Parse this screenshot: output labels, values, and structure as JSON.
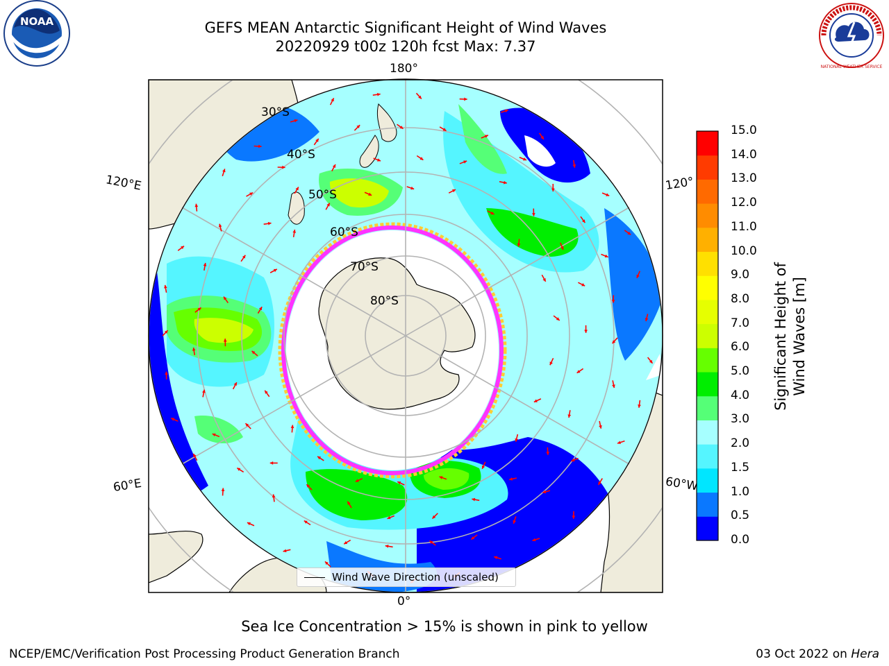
{
  "title": {
    "line1": "GEFS MEAN Antarctic Significant Height of Wind Waves",
    "line2": "20220929 t00z 120h fcst   Max: 7.37"
  },
  "map": {
    "projection": "south-polar-stereographic",
    "meridian_labels": [
      "180°",
      "120°E",
      "120°",
      "60°E",
      "60°W",
      "0°"
    ],
    "latitude_labels": [
      "30°S",
      "40°S",
      "50°S",
      "60°S",
      "70°S",
      "80°S"
    ],
    "land_color": "#efecdc",
    "ice_edge_colors": [
      "#ff33ff",
      "#ffcc33"
    ],
    "arrow_color": "#ff0000"
  },
  "legend": {
    "label": "Wind Wave Direction (unscaled)"
  },
  "colorbar": {
    "label": "Significant Height of Wind Waves [m]",
    "ticks": [
      "0.0",
      "0.5",
      "1.0",
      "1.5",
      "2.0",
      "3.0",
      "4.0",
      "5.0",
      "6.0",
      "7.0",
      "8.0",
      "9.0",
      "10.0",
      "11.0",
      "12.0",
      "13.0",
      "14.0",
      "15.0"
    ],
    "colors": [
      "#0000ff",
      "#0a78ff",
      "#00e6ff",
      "#55f5ff",
      "#a6ffff",
      "#55ff77",
      "#00ee00",
      "#66ff00",
      "#ccff00",
      "#e6ff00",
      "#ffff00",
      "#ffe000",
      "#ffb000",
      "#ff8c00",
      "#ff6a00",
      "#ff3b00",
      "#ff0000"
    ]
  },
  "note": "Sea Ice Concentration > 15% is shown in pink to yellow",
  "footer": {
    "left": "NCEP/EMC/Verification Post Processing Product Generation Branch",
    "right_prefix": "03 Oct 2022 on ",
    "right_italic": "Hera"
  },
  "logos": {
    "noaa": "NOAA",
    "nws": "NATIONAL WEATHER SERVICE"
  }
}
